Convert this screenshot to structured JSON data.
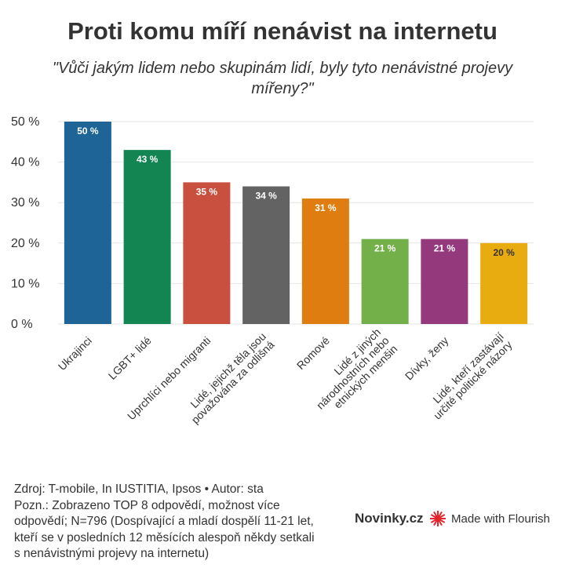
{
  "header": {
    "title": "Proti komu míří nenávist na internetu",
    "subtitle": "\"Vůči jakým lidem nebo skupinám lidí, byly tyto nenávistné projevy míøeny?\""
  },
  "chart_data": {
    "type": "bar",
    "categories": [
      [
        "Ukrajinci"
      ],
      [
        "LGBT+ lidé"
      ],
      [
        "Uprchlíci nebo migranti"
      ],
      [
        "Lidé, jejichž těla jsou",
        "považována za odlišná"
      ],
      [
        "Romové"
      ],
      [
        "Lidé z jiných",
        "národnostních nebo",
        "etnických menšin"
      ],
      [
        "Dívky,  ženy"
      ],
      [
        "Lidé, kteří zastávají",
        "určité politické názory"
      ]
    ],
    "values": [
      50,
      43,
      35,
      34,
      31,
      21,
      21,
      20
    ],
    "value_labels": [
      "50 %",
      "43 %",
      "35 %",
      "34 %",
      "31 %",
      "21 %",
      "21 %",
      "20 %"
    ],
    "colors": [
      "#1e6496",
      "#128553",
      "#c9503f",
      "#636363",
      "#e07d10",
      "#73b04a",
      "#943a7c",
      "#e9ac10"
    ],
    "label_colors": [
      "#ffffff",
      "#ffffff",
      "#ffffff",
      "#ffffff",
      "#ffffff",
      "#ffffff",
      "#ffffff",
      "#333333"
    ],
    "yticks": [
      0,
      10,
      20,
      30,
      40,
      50
    ],
    "ytick_labels": [
      "0 %",
      "10 %",
      "20 %",
      "30 %",
      "40 %",
      "50 %"
    ],
    "ylim": [
      0,
      50
    ],
    "grid": true,
    "legend": "none"
  },
  "footer": {
    "lines": [
      "Zdroj: T-mobile, In IUSTITIA, Ipsos • Autor: sta",
      "Pozn.: Zobrazeno TOP 8 odpovědí, možnost více",
      "odpovědí; N=796 (Dospívající a mladí dospělí 11-21 let,",
      "kteří se v posledních 12 měsících alespoň někdy setkali",
      "s nenávistnými projevy na internetu)"
    ],
    "brand": "Novinky.cz",
    "made_with": "Made with Flourish",
    "flourish_icon": "flourish-burst-icon",
    "flourish_color": "#e3262d"
  }
}
